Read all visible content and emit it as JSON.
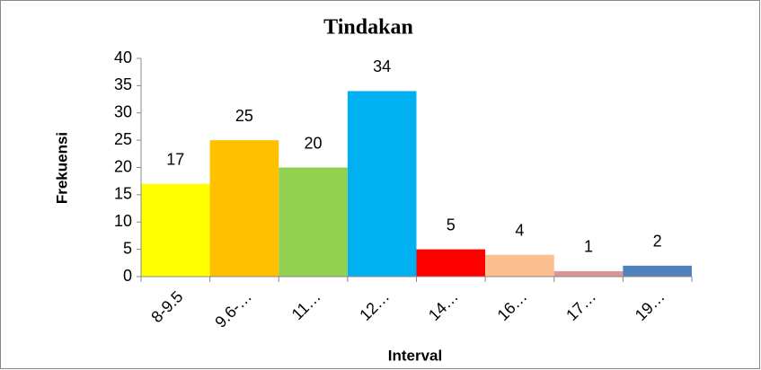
{
  "chart_data": {
    "type": "bar",
    "title": "Tindakan",
    "x_label": "Interval",
    "y_label": "Frekuensi",
    "categories": [
      "8-9.5",
      "9.6-…",
      "11…",
      "12…",
      "14…",
      "16…",
      "17…",
      "19…"
    ],
    "values": [
      17,
      25,
      20,
      34,
      5,
      4,
      1,
      2
    ],
    "colors": [
      "#ffff00",
      "#ffc000",
      "#92d050",
      "#00b0f0",
      "#ff0000",
      "#fac090",
      "#d99694",
      "#4f81bd"
    ],
    "ylim": [
      0,
      40
    ],
    "yticks": [
      0,
      5,
      10,
      15,
      20,
      25,
      30,
      35,
      40
    ],
    "grid": false
  }
}
